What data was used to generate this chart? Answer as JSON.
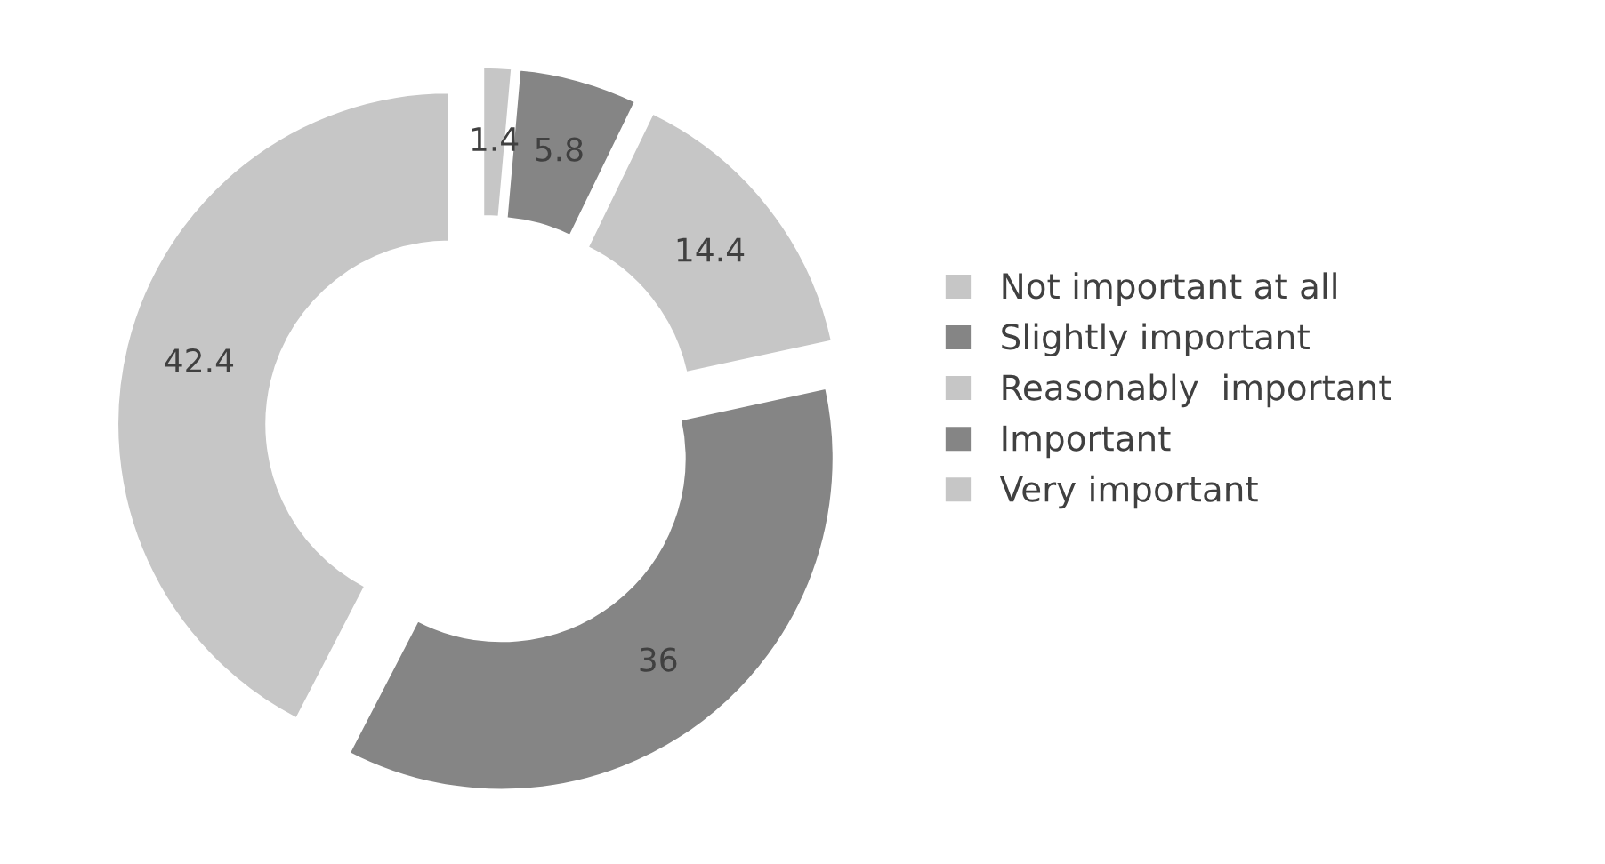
{
  "chart_data": {
    "type": "donut",
    "categories": [
      "Not important at all",
      "Slightly important",
      "Reasonably  important",
      "Important",
      "Very important"
    ],
    "values": [
      1.4,
      5.8,
      14.4,
      36,
      42.4
    ],
    "colors": [
      "#c6c6c6",
      "#858585",
      "#c6c6c6",
      "#858585",
      "#c6c6c6"
    ],
    "data_labels": true,
    "legend": "right"
  }
}
